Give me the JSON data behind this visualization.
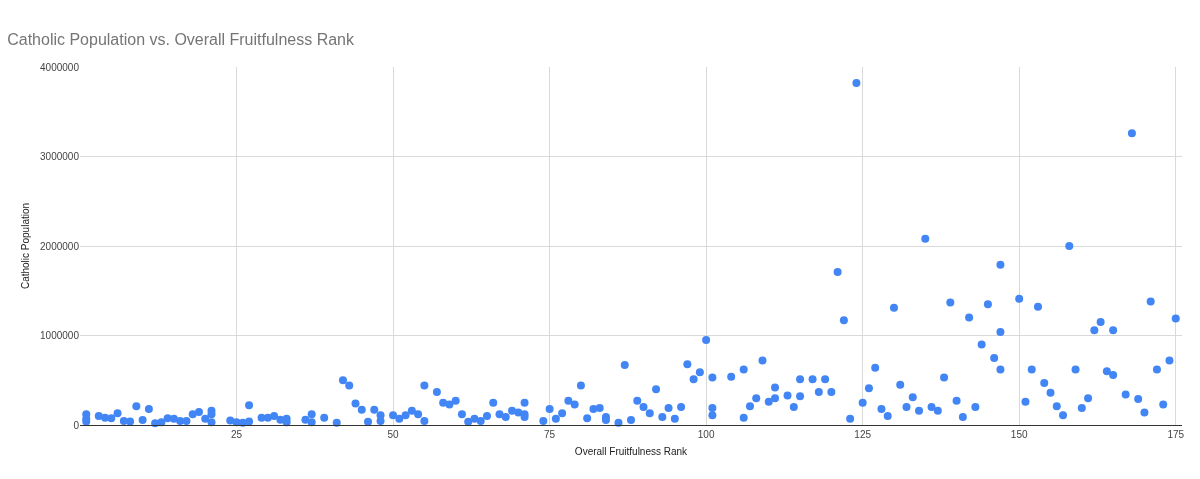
{
  "chart_data": {
    "type": "scatter",
    "title": "Catholic Population vs. Overall Fruitfulness Rank",
    "xlabel": "Overall Fruitfulness Rank",
    "ylabel": "Catholic Population",
    "marker": "circle",
    "grid": true,
    "legend": false,
    "xlim": [
      0,
      176
    ],
    "xticks": [
      25,
      50,
      75,
      100,
      125,
      150,
      175
    ],
    "ylim": [
      0,
      4000000
    ],
    "yticks": [
      0,
      1000000,
      2000000,
      3000000,
      4000000
    ],
    "x": [
      1,
      1,
      1,
      3,
      4,
      5,
      6,
      7,
      8,
      9,
      10,
      11,
      12,
      13,
      14,
      15,
      16,
      17,
      18,
      19,
      20,
      21,
      21,
      21,
      24,
      25,
      26,
      27,
      27,
      29,
      30,
      31,
      32,
      33,
      33,
      36,
      37,
      37,
      39,
      41,
      42,
      43,
      44,
      45,
      46,
      47,
      48,
      48,
      50,
      51,
      52,
      53,
      54,
      55,
      55,
      57,
      58,
      59,
      60,
      61,
      62,
      63,
      64,
      65,
      66,
      67,
      68,
      69,
      70,
      71,
      71,
      71,
      74,
      75,
      76,
      77,
      78,
      79,
      80,
      81,
      82,
      83,
      84,
      84,
      86,
      87,
      88,
      89,
      90,
      91,
      92,
      93,
      94,
      95,
      96,
      97,
      98,
      99,
      100,
      101,
      101,
      101,
      104,
      106,
      106,
      107,
      108,
      109,
      110,
      111,
      111,
      113,
      114,
      115,
      115,
      117,
      118,
      119,
      120,
      121,
      122,
      123,
      124,
      125,
      126,
      127,
      128,
      129,
      130,
      131,
      132,
      133,
      134,
      135,
      136,
      137,
      138,
      139,
      140,
      141,
      142,
      143,
      144,
      145,
      146,
      147,
      147,
      147,
      150,
      151,
      152,
      153,
      154,
      155,
      156,
      157,
      158,
      159,
      160,
      161,
      162,
      163,
      164,
      165,
      165,
      167,
      168,
      169,
      170,
      171,
      172,
      173,
      174,
      175
    ],
    "series": [
      {
        "color": "#4285f4",
        "values": [
          120000,
          70000,
          40000,
          100000,
          80000,
          75000,
          130000,
          45000,
          40000,
          210000,
          55000,
          180000,
          20000,
          30000,
          75000,
          70000,
          45000,
          45000,
          120000,
          145000,
          70000,
          160000,
          120000,
          30000,
          50000,
          30000,
          25000,
          40000,
          220000,
          80000,
          80000,
          100000,
          60000,
          70000,
          30000,
          60000,
          120000,
          30000,
          80000,
          25000,
          500000,
          440000,
          240000,
          170000,
          35000,
          170000,
          110000,
          45000,
          110000,
          70000,
          110000,
          160000,
          120000,
          440000,
          45000,
          370000,
          250000,
          230000,
          270000,
          120000,
          35000,
          70000,
          45000,
          100000,
          250000,
          120000,
          90000,
          160000,
          140000,
          250000,
          120000,
          90000,
          45000,
          180000,
          70000,
          130000,
          270000,
          230000,
          440000,
          75000,
          180000,
          190000,
          90000,
          55000,
          25000,
          670000,
          55000,
          270000,
          200000,
          130000,
          400000,
          90000,
          190000,
          70000,
          200000,
          680000,
          510000,
          590000,
          950000,
          530000,
          190000,
          110000,
          540000,
          620000,
          80000,
          210000,
          300000,
          720000,
          260000,
          420000,
          300000,
          330000,
          200000,
          510000,
          320000,
          510000,
          370000,
          510000,
          370000,
          1710000,
          1170000,
          70000,
          3820000,
          250000,
          410000,
          640000,
          180000,
          100000,
          1310000,
          450000,
          200000,
          310000,
          160000,
          2080000,
          200000,
          160000,
          530000,
          1370000,
          270000,
          90000,
          1200000,
          200000,
          900000,
          1350000,
          750000,
          1790000,
          1040000,
          620000,
          1410000,
          260000,
          620000,
          1320000,
          470000,
          360000,
          210000,
          110000,
          2000000,
          620000,
          190000,
          300000,
          1060000,
          1150000,
          600000,
          1060000,
          560000,
          340000,
          3260000,
          290000,
          140000,
          1380000,
          620000,
          230000,
          720000,
          1190000
        ]
      }
    ]
  }
}
